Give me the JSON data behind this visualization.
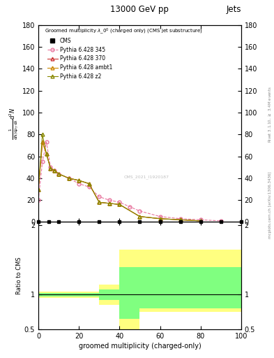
{
  "title": "13000 GeV pp",
  "title_right": "Jets",
  "xlabel": "groomed multiplicity (charged-only)",
  "ylabel_ratio": "Ratio to CMS",
  "watermark": "CMS_2021_I1920187",
  "ylim_main": [
    0,
    180
  ],
  "ylim_ratio": [
    0.5,
    2.05
  ],
  "xlim": [
    0,
    100
  ],
  "yticks_main": [
    0,
    20,
    40,
    60,
    80,
    100,
    120,
    140,
    160,
    180
  ],
  "yticks_ratio": [
    0.5,
    1.0,
    2.0
  ],
  "xticks": [
    0,
    20,
    40,
    60,
    80,
    100
  ],
  "p345_x": [
    0,
    2,
    4,
    6,
    8,
    10,
    15,
    20,
    25,
    30,
    35,
    40,
    45,
    50,
    60,
    70,
    80,
    90
  ],
  "p345_y": [
    20,
    55,
    73,
    50,
    47,
    44,
    40,
    35,
    32,
    23,
    20,
    18,
    14,
    10,
    5,
    3,
    2,
    1
  ],
  "p370_x": [
    0,
    2,
    4,
    6,
    8,
    10,
    15,
    20,
    25,
    30,
    35,
    40,
    50,
    60,
    70,
    80
  ],
  "p370_y": [
    30,
    73,
    62,
    49,
    47,
    44,
    40,
    38,
    35,
    18,
    17,
    16,
    5,
    3,
    2,
    1
  ],
  "pambt1_x": [
    0,
    2,
    4,
    6,
    8,
    10,
    15,
    20,
    25,
    30,
    35,
    40,
    50,
    60,
    70,
    80
  ],
  "pambt1_y": [
    30,
    73,
    62,
    49,
    47,
    44,
    40,
    38,
    35,
    18,
    17,
    16,
    5,
    3,
    2,
    1
  ],
  "pz2_x": [
    0,
    2,
    4,
    6,
    8,
    10,
    15,
    20,
    25,
    30,
    35,
    40,
    50,
    60,
    70,
    80
  ],
  "pz2_y": [
    30,
    80,
    62,
    49,
    47,
    44,
    40,
    38,
    35,
    18,
    17,
    16,
    5,
    3,
    2,
    1
  ],
  "color_cms": "#000000",
  "color_p345": "#e8769f",
  "color_p370": "#cc3333",
  "color_pambt1": "#cc8800",
  "color_pz2": "#888800",
  "color_yellow": "#ffff80",
  "color_green": "#80ff80"
}
